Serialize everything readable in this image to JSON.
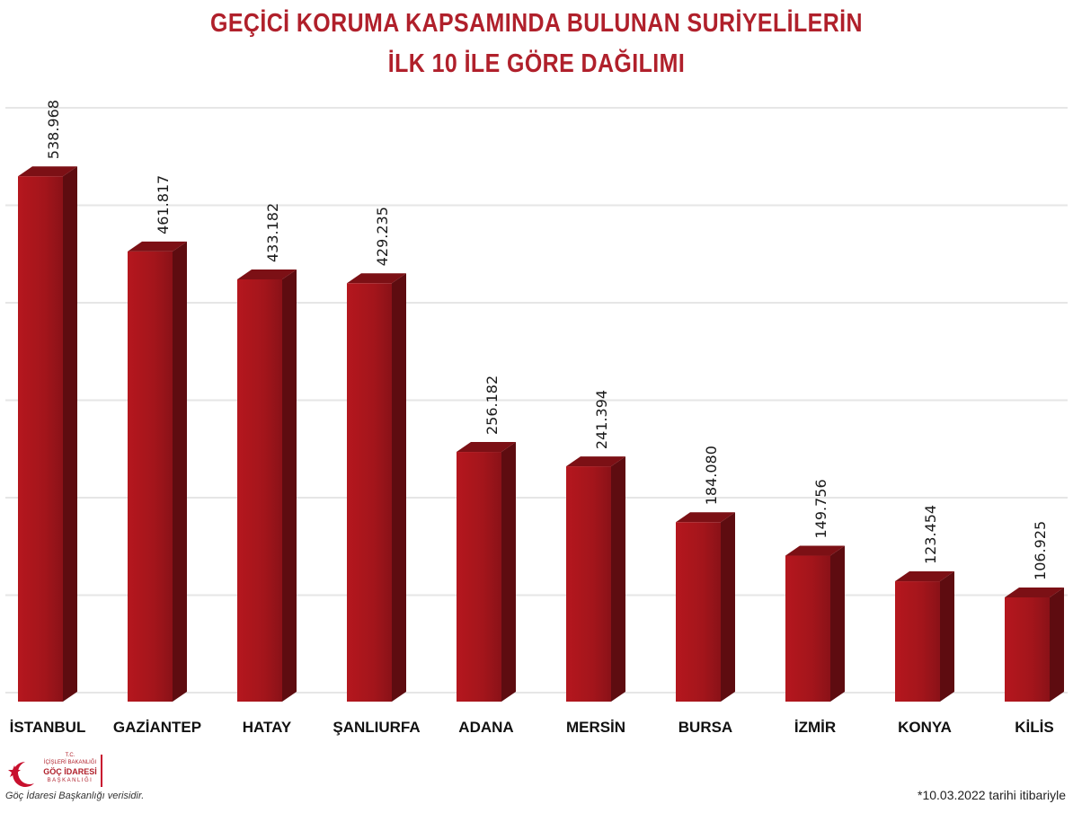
{
  "chart_data": {
    "type": "bar",
    "title_lines": [
      "GEÇİCİ KORUMA KAPSAMINDA BULUNAN SURİYELİLERİN",
      "İLK 10 İLE GÖRE DAĞILIMI"
    ],
    "categories": [
      "İSTANBUL",
      "GAZİANTEP",
      "HATAY",
      "ŞANLIURFA",
      "ADANA",
      "MERSİN",
      "BURSA",
      "İZMİR",
      "KONYA",
      "KİLİS"
    ],
    "values": [
      538968,
      461817,
      433182,
      429235,
      256182,
      241394,
      184080,
      149756,
      123454,
      106925
    ],
    "value_labels": [
      "538.968",
      "461.817",
      "433.182",
      "429.235",
      "256.182",
      "241.394",
      "184.080",
      "149.756",
      "123.454",
      "106.925"
    ],
    "ylim": [
      0,
      600000
    ],
    "grid": true,
    "legend": "none",
    "bar_color": "#a3151b",
    "bar_side_color": "#5e0c10",
    "bar_top_color": "#7c1015"
  },
  "footer": {
    "logo": {
      "line1": "T.C.",
      "line2": "İÇİŞLERİ BAKANLIĞI",
      "line3": "GÖÇ İDARESİ",
      "line4": "BAŞKANLIĞI"
    },
    "source_note": "Göç İdaresi Başkanlığı verisidir.",
    "date_note": "*10.03.2022 tarihi itibariyle"
  },
  "colors": {
    "title": "#b0202b",
    "logo": "#b0202b",
    "grid": "#e6e6e6"
  }
}
